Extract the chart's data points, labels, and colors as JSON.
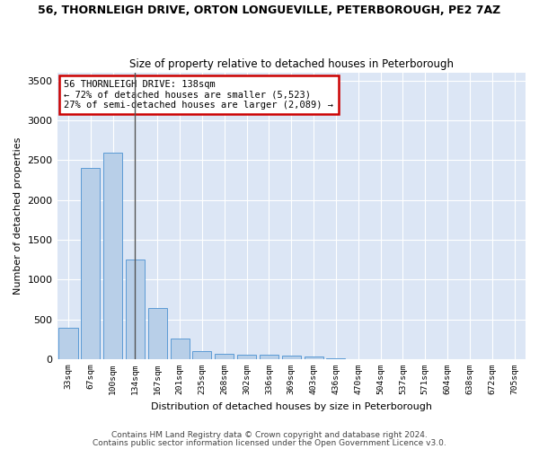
{
  "title_line1": "56, THORNLEIGH DRIVE, ORTON LONGUEVILLE, PETERBOROUGH, PE2 7AZ",
  "title_line2": "Size of property relative to detached houses in Peterborough",
  "xlabel": "Distribution of detached houses by size in Peterborough",
  "ylabel": "Number of detached properties",
  "categories": [
    "33sqm",
    "67sqm",
    "100sqm",
    "134sqm",
    "167sqm",
    "201sqm",
    "235sqm",
    "268sqm",
    "302sqm",
    "336sqm",
    "369sqm",
    "403sqm",
    "436sqm",
    "470sqm",
    "504sqm",
    "537sqm",
    "571sqm",
    "604sqm",
    "638sqm",
    "672sqm",
    "705sqm"
  ],
  "values": [
    390,
    2400,
    2600,
    1250,
    640,
    260,
    100,
    60,
    55,
    55,
    40,
    35,
    5,
    3,
    2,
    2,
    1,
    1,
    1,
    1,
    1
  ],
  "bar_color": "#b8cfe8",
  "bar_edge_color": "#5b9bd5",
  "background_color": "#dce6f5",
  "grid_color": "#ffffff",
  "annotation_text": "56 THORNLEIGH DRIVE: 138sqm\n← 72% of detached houses are smaller (5,523)\n27% of semi-detached houses are larger (2,089) →",
  "vline_bar_index": 3,
  "vline_color": "#555555",
  "annotation_box_edge_color": "#cc0000",
  "ylim": [
    0,
    3600
  ],
  "yticks": [
    0,
    500,
    1000,
    1500,
    2000,
    2500,
    3000,
    3500
  ],
  "footer1": "Contains HM Land Registry data © Crown copyright and database right 2024.",
  "footer2": "Contains public sector information licensed under the Open Government Licence v3.0.",
  "fig_width": 6.0,
  "fig_height": 5.0,
  "fig_bg_color": "#ffffff"
}
